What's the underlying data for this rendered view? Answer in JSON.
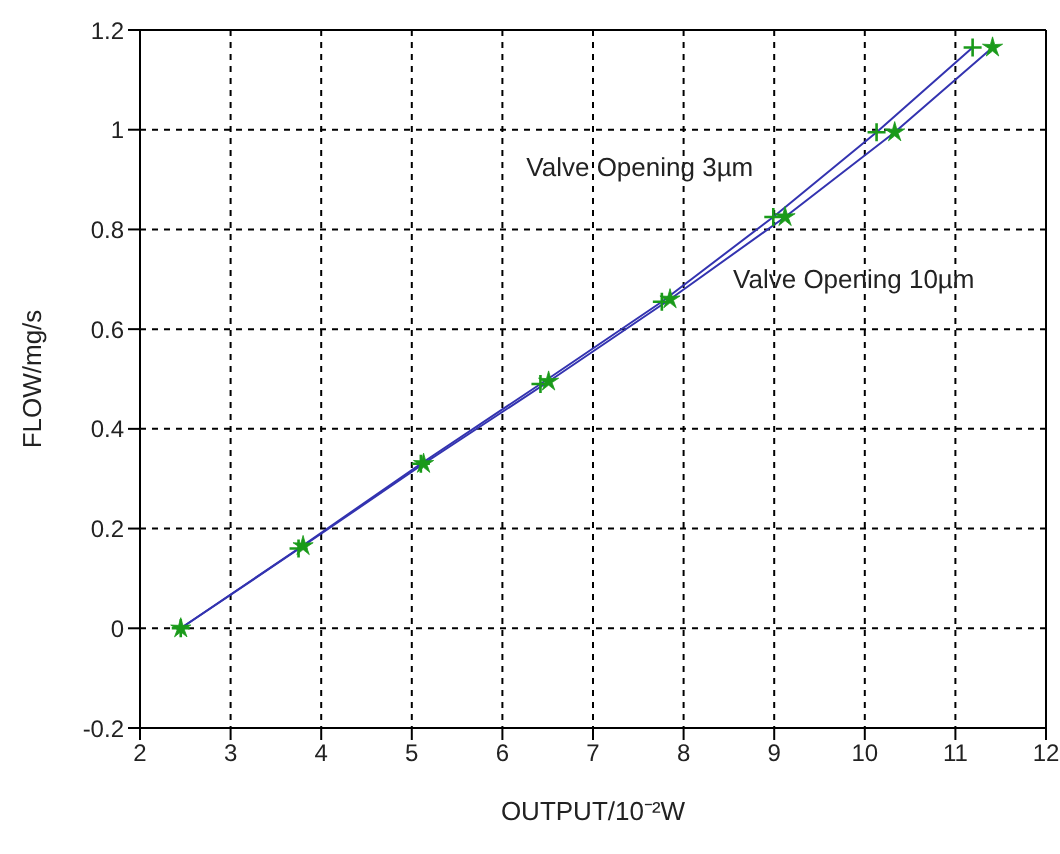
{
  "chart_data": {
    "type": "line",
    "xlabel": "OUTPUT/10⁻²W",
    "ylabel": "FLOW/mg/s",
    "xlim": [
      2,
      12
    ],
    "xticks": [
      2,
      3,
      4,
      5,
      6,
      7,
      8,
      9,
      10,
      11,
      12
    ],
    "ylim": [
      -0.2,
      1.2
    ],
    "yticks": [
      -0.2,
      0,
      0.2,
      0.4,
      0.6,
      0.8,
      1,
      1.2
    ],
    "grid": true,
    "series": [
      {
        "type": "line",
        "name": "Valve Opening 3µm",
        "color": "#3333b0",
        "marker": "none",
        "x": [
          2.45,
          3.75,
          5.1,
          6.42,
          7.76,
          8.99,
          10.13,
          11.19
        ],
        "values": [
          0,
          0.16,
          0.33,
          0.49,
          0.655,
          0.825,
          0.995,
          1.165
        ]
      },
      {
        "type": "line",
        "name": "Valve Opening 10µm",
        "color": "#3333b0",
        "marker": "none",
        "x": [
          2.45,
          3.8,
          5.13,
          6.51,
          7.85,
          9.12,
          10.33,
          11.41
        ],
        "values": [
          0,
          0.165,
          0.33,
          0.495,
          0.66,
          0.825,
          0.995,
          1.165
        ]
      },
      {
        "type": "scatter",
        "color": "#1a9a1a",
        "marker": "cross",
        "x": [
          2.45,
          3.75,
          5.1,
          6.42,
          7.76,
          8.99,
          10.13,
          11.19
        ],
        "values": [
          0,
          0.16,
          0.33,
          0.49,
          0.655,
          0.825,
          0.995,
          1.165
        ]
      },
      {
        "type": "scatter",
        "color": "#1a9a1a",
        "marker": "star",
        "x": [
          2.45,
          3.8,
          5.13,
          6.51,
          7.85,
          9.12,
          10.33,
          11.41
        ],
        "values": [
          0,
          0.165,
          0.33,
          0.495,
          0.66,
          0.825,
          0.995,
          1.165
        ]
      }
    ]
  }
}
